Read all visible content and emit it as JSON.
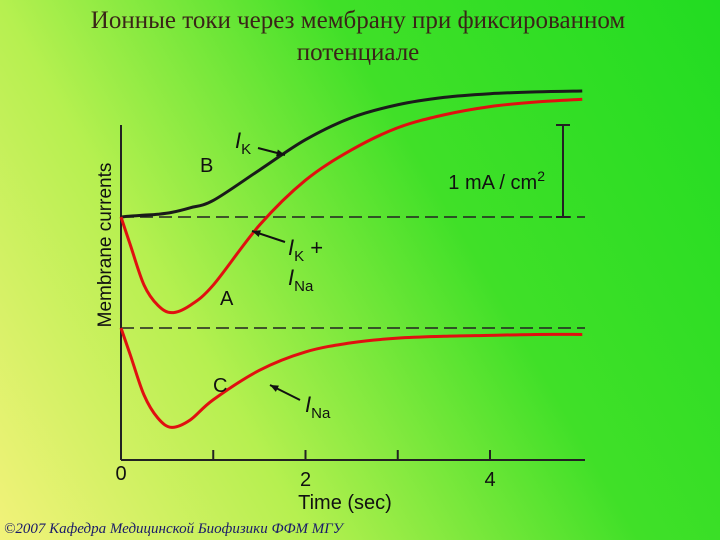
{
  "title": [
    "Ионные токи через мембрану при фиксированном",
    "потенциале"
  ],
  "footer": "©2007 Кафедра Медицинской Биофизики ФФМ МГУ",
  "chart_data": [
    {
      "type": "line",
      "y_label": "Membrane currents",
      "x": [
        0,
        0.1,
        0.25,
        0.4,
        0.55,
        0.75,
        1,
        1.5,
        2,
        2.5,
        3,
        3.5,
        4,
        4.5,
        5
      ],
      "xlim": [
        0,
        5
      ],
      "ylim": [
        -1.1,
        1.4
      ],
      "baseline": 0,
      "series": [
        {
          "label_parts": [
            {
              "text": "I",
              "style": "italic"
            },
            {
              "text": "K",
              "style": "sub"
            }
          ],
          "color": "#1a1a1a",
          "values": [
            0,
            0.01,
            0.02,
            0.03,
            0.05,
            0.1,
            0.18,
            0.51,
            0.84,
            1.08,
            1.22,
            1.3,
            1.34,
            1.36,
            1.37
          ]
        },
        {
          "label_parts": [
            {
              "text": "I",
              "style": "italic"
            },
            {
              "text": "K",
              "style": "sub"
            },
            {
              "text": " +",
              "style": "normal"
            },
            {
              "text": "I",
              "style": "italic-newline"
            },
            {
              "text": "Na",
              "style": "sub"
            }
          ],
          "color": "#e01010",
          "values": [
            0,
            -0.3,
            -0.74,
            -0.96,
            -1.04,
            -0.96,
            -0.74,
            -0.09,
            0.4,
            0.73,
            0.97,
            1.11,
            1.2,
            1.25,
            1.28
          ]
        }
      ],
      "letters": [
        "B",
        "A"
      ],
      "scale_bar": {
        "value": 1,
        "label": "1 mA / cm",
        "label_sup": "2"
      }
    },
    {
      "type": "line",
      "x": [
        0,
        0.1,
        0.25,
        0.4,
        0.55,
        0.75,
        1,
        1.5,
        2,
        2.5,
        3,
        3.5,
        4,
        4.5,
        5
      ],
      "xlim": [
        0,
        5
      ],
      "ylim": [
        -1.2,
        0.15
      ],
      "baseline": 0,
      "xticks": [
        0,
        2,
        4
      ],
      "minor_xticks": [
        1,
        3
      ],
      "x_label": "Time (sec)",
      "series": [
        {
          "label_parts": [
            {
              "text": "I",
              "style": "italic"
            },
            {
              "text": "Na",
              "style": "sub"
            }
          ],
          "color": "#e01010",
          "values": [
            0,
            -0.29,
            -0.73,
            -0.98,
            -1.08,
            -1,
            -0.78,
            -0.46,
            -0.26,
            -0.16,
            -0.11,
            -0.09,
            -0.08,
            -0.07,
            -0.07
          ]
        }
      ],
      "letters": [
        "C"
      ]
    }
  ]
}
